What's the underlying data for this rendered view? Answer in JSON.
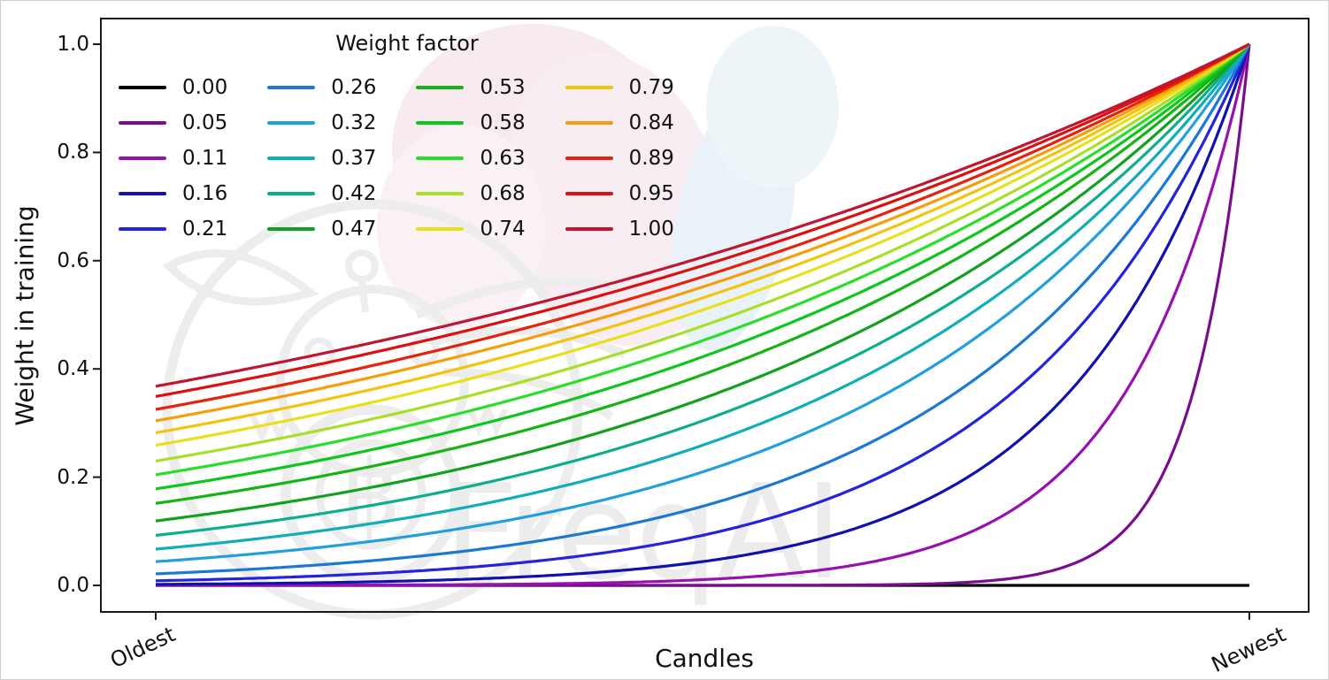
{
  "figure": {
    "xlabel": "Candles",
    "ylabel": "Weight in training",
    "x_tick_labels": [
      "Oldest",
      "Newest"
    ],
    "y_tick_labels": [
      "1.0",
      "0.8",
      "0.6",
      "0.4",
      "0.2",
      "0.0"
    ],
    "background_color": "#ffffff",
    "axes_frame_color": "#1a1a1a"
  },
  "legend": {
    "title": "Weight factor",
    "columns": 4,
    "rows": 5,
    "position": "upper left"
  },
  "watermark": {
    "text": "FreqAI",
    "logo": "freqtrade-bot-logo",
    "text_color": "#ececec",
    "logo_color": "#ededed",
    "blob_pink": "#f7ebf1",
    "blob_blue": "#e9f2f8"
  },
  "chart_data": {
    "type": "line",
    "title": "",
    "xlabel": "Candles",
    "ylabel": "Weight in training",
    "x_axis": {
      "left_label": "Oldest",
      "right_label": "Newest",
      "domain": [
        0,
        1
      ]
    },
    "ylim": [
      0,
      1
    ],
    "y_ticks": [
      0.0,
      0.2,
      0.4,
      0.6,
      0.8,
      1.0
    ],
    "grid": false,
    "legend_title": "Weight factor",
    "curve_formula": "weight(x) = exp(-(1 - x) / weight_factor) for x in [0,1]; x=0 is the oldest candle, x=1 the newest; weight_factor = 0 gives a flat line at 0",
    "series": [
      {
        "label": "0.00",
        "weight_factor": 0.0,
        "color": "#000000",
        "y_at_oldest": 0.0,
        "y_at_newest": 0.0
      },
      {
        "label": "0.05",
        "weight_factor": 0.05,
        "color": "#7B0C8F",
        "y_at_oldest": 0.0,
        "y_at_newest": 1.0
      },
      {
        "label": "0.11",
        "weight_factor": 0.11,
        "color": "#9810B0",
        "y_at_oldest": 0.0,
        "y_at_newest": 1.0
      },
      {
        "label": "0.16",
        "weight_factor": 0.16,
        "color": "#1111AE",
        "y_at_oldest": 0.002,
        "y_at_newest": 1.0
      },
      {
        "label": "0.21",
        "weight_factor": 0.21,
        "color": "#2423DE",
        "y_at_oldest": 0.009,
        "y_at_newest": 1.0
      },
      {
        "label": "0.26",
        "weight_factor": 0.26,
        "color": "#1B79D4",
        "y_at_oldest": 0.021,
        "y_at_newest": 1.0
      },
      {
        "label": "0.32",
        "weight_factor": 0.32,
        "color": "#21A0DC",
        "y_at_oldest": 0.044,
        "y_at_newest": 1.0
      },
      {
        "label": "0.37",
        "weight_factor": 0.37,
        "color": "#10AEB8",
        "y_at_oldest": 0.067,
        "y_at_newest": 1.0
      },
      {
        "label": "0.42",
        "weight_factor": 0.42,
        "color": "#0DAE8E",
        "y_at_oldest": 0.092,
        "y_at_newest": 1.0
      },
      {
        "label": "0.47",
        "weight_factor": 0.47,
        "color": "#12A021",
        "y_at_oldest": 0.119,
        "y_at_newest": 1.0
      },
      {
        "label": "0.53",
        "weight_factor": 0.53,
        "color": "#14B414",
        "y_at_oldest": 0.152,
        "y_at_newest": 1.0
      },
      {
        "label": "0.58",
        "weight_factor": 0.58,
        "color": "#0DC71D",
        "y_at_oldest": 0.178,
        "y_at_newest": 1.0
      },
      {
        "label": "0.63",
        "weight_factor": 0.63,
        "color": "#2ADF2A",
        "y_at_oldest": 0.204,
        "y_at_newest": 1.0
      },
      {
        "label": "0.68",
        "weight_factor": 0.68,
        "color": "#A9DF2B",
        "y_at_oldest": 0.23,
        "y_at_newest": 1.0
      },
      {
        "label": "0.74",
        "weight_factor": 0.74,
        "color": "#E8E01E",
        "y_at_oldest": 0.259,
        "y_at_newest": 1.0
      },
      {
        "label": "0.79",
        "weight_factor": 0.79,
        "color": "#F3C30F",
        "y_at_oldest": 0.282,
        "y_at_newest": 1.0
      },
      {
        "label": "0.84",
        "weight_factor": 0.84,
        "color": "#F59D0A",
        "y_at_oldest": 0.304,
        "y_at_newest": 1.0
      },
      {
        "label": "0.89",
        "weight_factor": 0.89,
        "color": "#E7210E",
        "y_at_oldest": 0.325,
        "y_at_newest": 1.0
      },
      {
        "label": "0.95",
        "weight_factor": 0.95,
        "color": "#DB100F",
        "y_at_oldest": 0.349,
        "y_at_newest": 1.0
      },
      {
        "label": "1.00",
        "weight_factor": 1.0,
        "color": "#BE1731",
        "y_at_oldest": 0.368,
        "y_at_newest": 1.0
      }
    ]
  }
}
